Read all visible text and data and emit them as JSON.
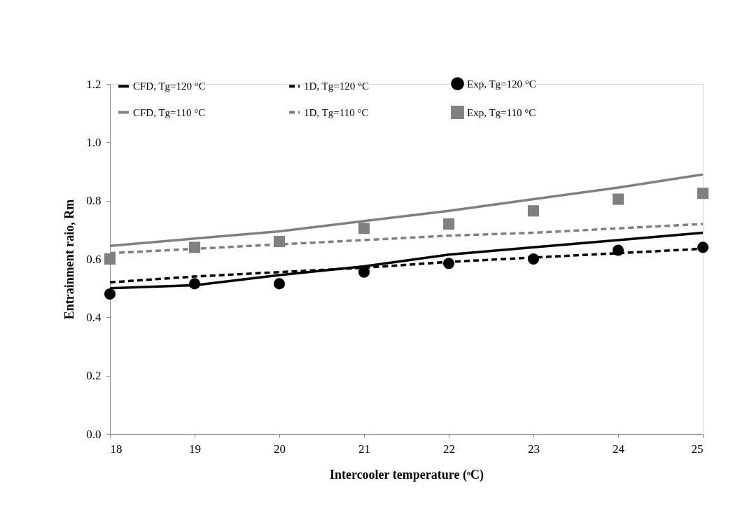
{
  "chart_data": {
    "type": "line",
    "xlabel": "Intercooler  temperature (ᵒC)",
    "ylabel": "Entrainment raio, Rm",
    "x": [
      18,
      19,
      20,
      21,
      22,
      23,
      24,
      25
    ],
    "series": [
      {
        "name": "CFD, Tg=120 °C",
        "line_style": "solid",
        "color": "#000000",
        "values": [
          0.5,
          0.51,
          0.545,
          0.575,
          0.615,
          0.64,
          0.665,
          0.69
        ]
      },
      {
        "name": "1D, Tg=120 °C",
        "line_style": "dashed",
        "color": "#000000",
        "values": [
          0.52,
          0.54,
          0.555,
          0.57,
          0.59,
          0.605,
          0.62,
          0.635
        ]
      },
      {
        "name": "Exp, Tg=120 °C",
        "type": "scatter",
        "marker": "circle",
        "color": "#000000",
        "values": [
          0.48,
          0.515,
          0.515,
          0.555,
          0.585,
          0.6,
          0.63,
          0.64
        ]
      },
      {
        "name": "CFD, Tg=110 °C",
        "line_style": "solid",
        "color": "#808080",
        "values": [
          0.645,
          0.67,
          0.695,
          0.73,
          0.765,
          0.805,
          0.845,
          0.89
        ]
      },
      {
        "name": "1D, Tg=110 °C",
        "line_style": "dashed",
        "color": "#808080",
        "values": [
          0.62,
          0.635,
          0.65,
          0.665,
          0.68,
          0.69,
          0.705,
          0.72
        ]
      },
      {
        "name": "Exp, Tg=110 °C",
        "type": "scatter",
        "marker": "square",
        "color": "#808080",
        "values": [
          0.6,
          0.64,
          0.66,
          0.705,
          0.72,
          0.765,
          0.805,
          0.825
        ]
      }
    ],
    "xlim": [
      18,
      25
    ],
    "xticks": [
      18,
      19,
      20,
      21,
      22,
      23,
      24,
      25
    ],
    "ylim": [
      0,
      1.2
    ],
    "yticks": [
      {
        "value": 0,
        "label": "0.0"
      },
      0.2,
      0.4,
      0.6,
      0.8,
      {
        "value": 1,
        "label": "1.0"
      },
      1.2
    ],
    "grid": false,
    "legend": "top"
  }
}
